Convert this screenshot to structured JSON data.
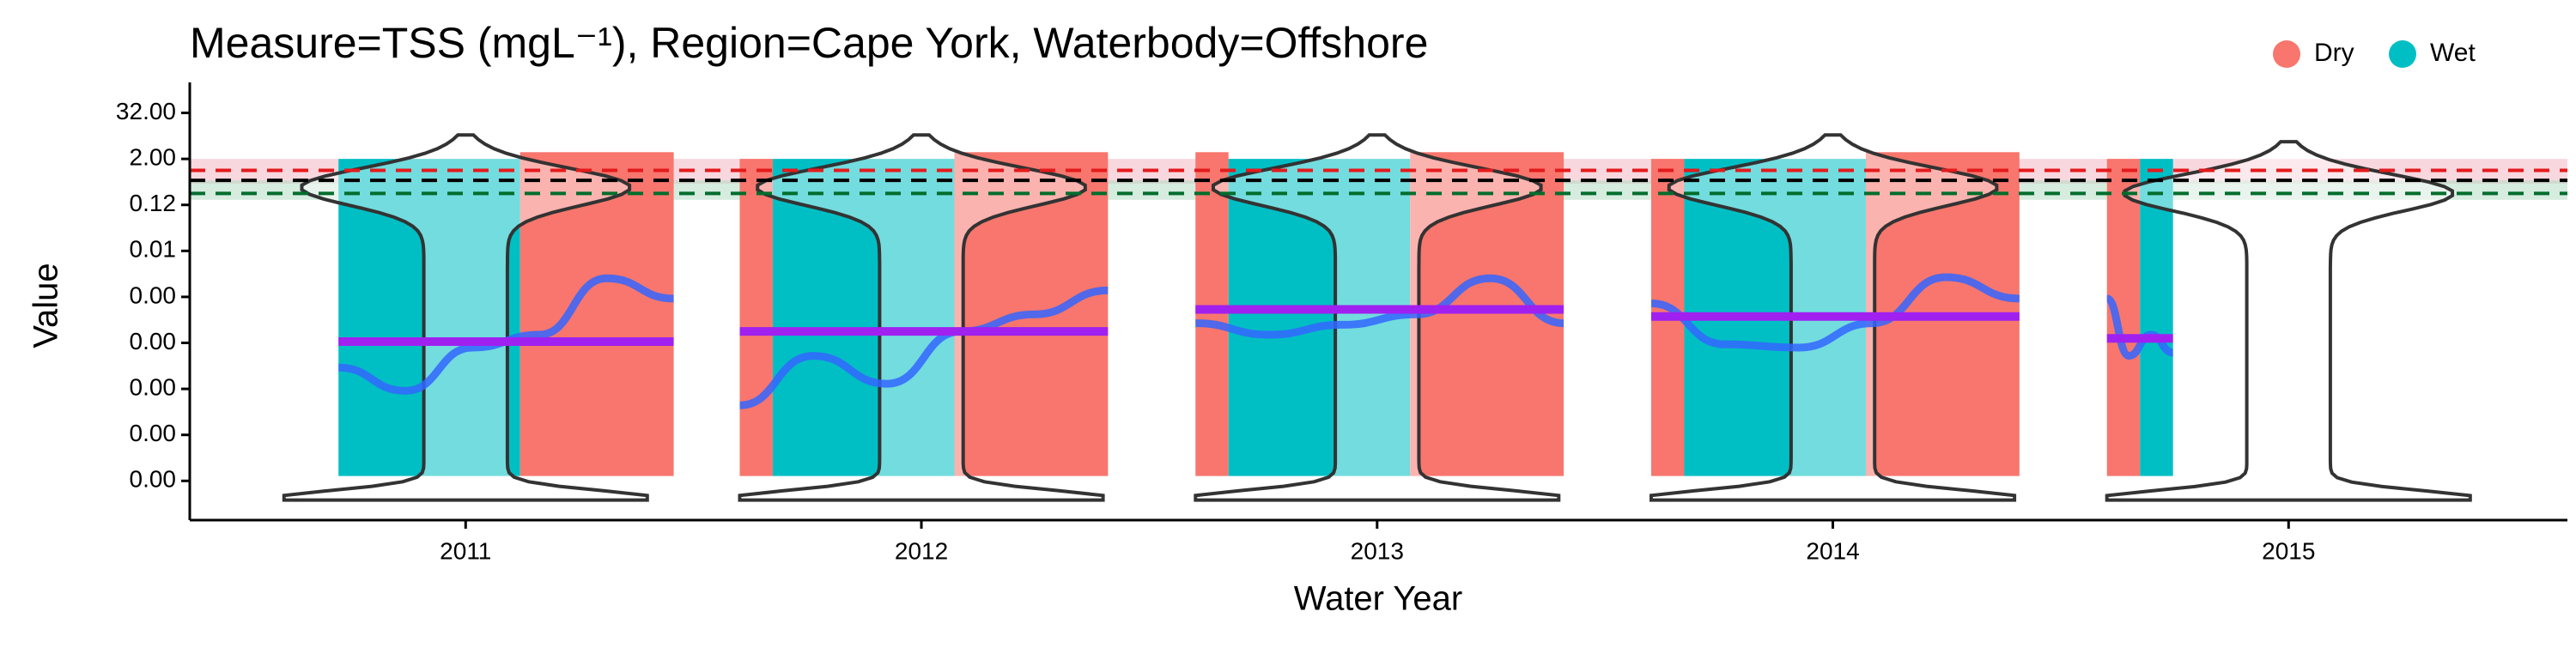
{
  "chart_data": {
    "type": "violin",
    "title": "Measure=TSS (mgL⁻¹), Region=Cape York, Waterbody=Offshore",
    "x_label": "Water Year",
    "y_label": "Value",
    "y_scale": "log2",
    "categories": [
      "2011",
      "2012",
      "2013",
      "2014",
      "2015"
    ],
    "series": [
      {
        "name": "Dry",
        "color": "#f8766d"
      },
      {
        "name": "Wet",
        "color": "#00bfc4"
      }
    ],
    "legend_position": "top-right",
    "grid": false,
    "ylim": [
      7e-10,
      120
    ],
    "yticks": [
      {
        "value": 32,
        "label": "32.00"
      },
      {
        "value": 2,
        "label": "2.00"
      },
      {
        "value": 0.125,
        "label": "0.12"
      },
      {
        "value": 0.0078125,
        "label": "0.01"
      },
      {
        "value": 0.00048828125,
        "label": "0.00"
      },
      {
        "value": 3.0517578125e-05,
        "label": "0.00"
      },
      {
        "value": 1.9073486328125e-06,
        "label": "0.00"
      },
      {
        "value": 1.1920928955078125e-07,
        "label": "0.00"
      },
      {
        "value": 7.450580596923828e-09,
        "label": "0.00"
      }
    ],
    "bands": [
      {
        "low": 0.45,
        "high": 2.0,
        "color": "#f4b6c2"
      },
      {
        "low": 0.17,
        "high": 0.55,
        "color": "#b3dcc4"
      }
    ],
    "reference_lines": [
      {
        "value": 1.0,
        "color": "#e41a1c"
      },
      {
        "value": 0.55,
        "color": "#000000"
      },
      {
        "value": 0.25,
        "color": "#006d2c"
      }
    ],
    "median_color": "#a020f0",
    "trend_color": "#3366ff",
    "years": [
      {
        "periods": [
          {
            "season": "Wet",
            "min": 1e-08,
            "max": 2
          },
          {
            "season": "Dry",
            "min": 1e-08,
            "max": 3
          }
        ],
        "median": 3.3e-05,
        "trend": [
          6.9e-06,
          1.7e-06,
          2.3e-05,
          5e-05,
          0.0015,
          0.00044
        ]
      },
      {
        "periods": [
          {
            "season": "Dry",
            "min": 1e-08,
            "max": 2
          },
          {
            "season": "Wet",
            "min": 1e-08,
            "max": 2
          },
          {
            "season": "Dry",
            "min": 1e-08,
            "max": 3
          }
        ],
        "median": 6.1e-05,
        "trend": [
          7.1e-07,
          1.4e-05,
          2.6e-06,
          6.1e-05,
          0.00017,
          0.00072
        ]
      },
      {
        "periods": [
          {
            "season": "Dry",
            "min": 1e-08,
            "max": 3
          },
          {
            "season": "Wet",
            "min": 1e-08,
            "max": 2
          },
          {
            "season": "Dry",
            "min": 1e-08,
            "max": 3
          }
        ],
        "median": 0.00023,
        "trend": [
          0.0001,
          5e-05,
          9.1e-05,
          0.00017,
          0.0015,
          0.0001
        ]
      },
      {
        "periods": [
          {
            "season": "Dry",
            "min": 1e-08,
            "max": 2
          },
          {
            "season": "Wet",
            "min": 1e-08,
            "max": 2
          },
          {
            "season": "Dry",
            "min": 1e-08,
            "max": 3
          }
        ],
        "median": 0.00015,
        "trend": [
          0.00033,
          2.8e-05,
          2.3e-05,
          0.0001,
          0.0016,
          0.00044
        ]
      },
      {
        "periods": [
          {
            "season": "Dry",
            "min": 1e-08,
            "max": 2
          },
          {
            "season": "Wet",
            "min": 1e-08,
            "max": 2
          }
        ],
        "median": 4e-05,
        "trend": [
          0.00044,
          1.4e-05,
          5e-05,
          1.7e-05
        ]
      }
    ]
  }
}
